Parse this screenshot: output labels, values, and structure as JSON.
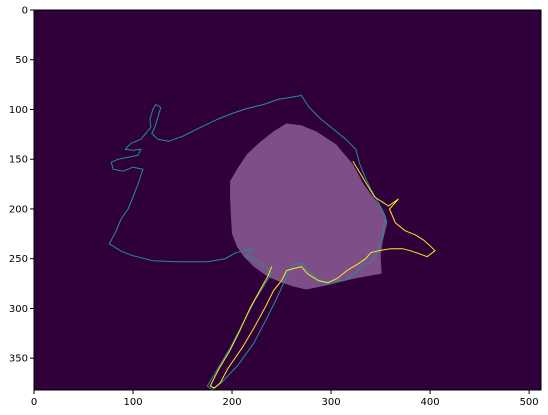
{
  "chart_data": {
    "type": "heatmap",
    "title": "",
    "xlabel": "",
    "ylabel": "",
    "xlim": [
      0,
      512
    ],
    "ylim": [
      382,
      0
    ],
    "x_ticks": [
      0,
      100,
      200,
      300,
      400,
      500
    ],
    "y_ticks": [
      0,
      50,
      100,
      150,
      200,
      250,
      300,
      350
    ],
    "colors": {
      "background": "#30003b",
      "region_fill": "#7d4e88",
      "outline_teal": "#21918c",
      "outline_yellow": "#fde725"
    },
    "series": [
      {
        "kind": "filled-region",
        "points": [
          [
            255,
            114
          ],
          [
            270,
            116
          ],
          [
            285,
            122
          ],
          [
            305,
            135
          ],
          [
            322,
            155
          ],
          [
            333,
            175
          ],
          [
            340,
            185
          ],
          [
            352,
            200
          ],
          [
            357,
            213
          ],
          [
            352,
            233
          ],
          [
            350,
            247
          ],
          [
            351,
            265
          ],
          [
            323,
            270
          ],
          [
            303,
            275
          ],
          [
            290,
            278
          ],
          [
            275,
            281
          ],
          [
            262,
            278
          ],
          [
            250,
            274
          ],
          [
            236,
            268
          ],
          [
            222,
            258
          ],
          [
            212,
            248
          ],
          [
            205,
            238
          ],
          [
            200,
            225
          ],
          [
            199,
            210
          ],
          [
            198,
            190
          ],
          [
            198,
            172
          ],
          [
            205,
            160
          ],
          [
            215,
            145
          ],
          [
            228,
            133
          ],
          [
            242,
            122
          ]
        ]
      },
      {
        "kind": "outline",
        "color": "teal",
        "points": [
          [
            240,
            264
          ],
          [
            226,
            252
          ],
          [
            214,
            248
          ],
          [
            220,
            240
          ],
          [
            204,
            244
          ],
          [
            193,
            250
          ],
          [
            175,
            253
          ],
          [
            145,
            253
          ],
          [
            120,
            252
          ],
          [
            100,
            247
          ],
          [
            89,
            243
          ],
          [
            76,
            235
          ],
          [
            83,
            222
          ],
          [
            88,
            210
          ],
          [
            95,
            200
          ],
          [
            100,
            188
          ],
          [
            105,
            175
          ],
          [
            110,
            160
          ],
          [
            100,
            158
          ],
          [
            90,
            162
          ],
          [
            80,
            160
          ],
          [
            78,
            153
          ],
          [
            85,
            150
          ],
          [
            95,
            148
          ],
          [
            105,
            146
          ],
          [
            108,
            140
          ],
          [
            100,
            141
          ],
          [
            92,
            140
          ],
          [
            98,
            134
          ],
          [
            108,
            130
          ],
          [
            112,
            125
          ],
          [
            118,
            118
          ],
          [
            117,
            110
          ],
          [
            120,
            100
          ],
          [
            123,
            95
          ],
          [
            128,
            98
          ],
          [
            125,
            108
          ],
          [
            122,
            118
          ],
          [
            119,
            124
          ],
          [
            125,
            130
          ],
          [
            136,
            132
          ],
          [
            150,
            127
          ],
          [
            168,
            118
          ],
          [
            185,
            110
          ],
          [
            200,
            104
          ],
          [
            215,
            99
          ],
          [
            232,
            95
          ],
          [
            246,
            90
          ],
          [
            258,
            88
          ],
          [
            270,
            86
          ],
          [
            278,
            98
          ],
          [
            290,
            110
          ],
          [
            300,
            118
          ],
          [
            315,
            130
          ],
          [
            325,
            140
          ],
          [
            329,
            155
          ],
          [
            334,
            167
          ],
          [
            340,
            180
          ],
          [
            348,
            194
          ],
          [
            355,
            208
          ],
          [
            352,
            228
          ],
          [
            345,
            246
          ],
          [
            340,
            254
          ],
          [
            333,
            255
          ],
          [
            327,
            262
          ],
          [
            320,
            268
          ],
          [
            312,
            272
          ],
          [
            303,
            272
          ],
          [
            296,
            276
          ],
          [
            287,
            270
          ],
          [
            276,
            262
          ],
          [
            270,
            255
          ],
          [
            263,
            255
          ],
          [
            258,
            262
          ],
          [
            252,
            275
          ],
          [
            245,
            290
          ],
          [
            235,
            310
          ],
          [
            222,
            335
          ],
          [
            206,
            357
          ],
          [
            190,
            374
          ],
          [
            180,
            382
          ],
          [
            175,
            378
          ],
          [
            186,
            360
          ],
          [
            199,
            338
          ],
          [
            211,
            315
          ],
          [
            223,
            292
          ],
          [
            236,
            271
          ],
          [
            240,
            264
          ]
        ]
      },
      {
        "kind": "outline",
        "color": "yellow",
        "points": [
          [
            322,
            152
          ],
          [
            333,
            170
          ],
          [
            344,
            188
          ],
          [
            358,
            197
          ],
          [
            368,
            190
          ],
          [
            359,
            200
          ],
          [
            365,
            214
          ],
          [
            375,
            222
          ],
          [
            385,
            226
          ],
          [
            393,
            231
          ],
          [
            400,
            237
          ],
          [
            405,
            242
          ],
          [
            397,
            248
          ],
          [
            389,
            245
          ],
          [
            380,
            242
          ],
          [
            372,
            240
          ],
          [
            360,
            240
          ],
          [
            348,
            242
          ],
          [
            340,
            244
          ],
          [
            335,
            250
          ],
          [
            326,
            256
          ],
          [
            316,
            262
          ],
          [
            306,
            270
          ],
          [
            297,
            274
          ],
          [
            287,
            272
          ],
          [
            276,
            265
          ],
          [
            270,
            258
          ],
          [
            262,
            260
          ],
          [
            255,
            262
          ],
          [
            250,
            272
          ],
          [
            242,
            282
          ],
          [
            234,
            298
          ],
          [
            222,
            320
          ],
          [
            210,
            340
          ],
          [
            196,
            360
          ],
          [
            188,
            375
          ],
          [
            182,
            380
          ],
          [
            178,
            378
          ],
          [
            186,
            362
          ],
          [
            198,
            342
          ],
          [
            208,
            322
          ],
          [
            218,
            300
          ],
          [
            228,
            282
          ],
          [
            236,
            268
          ],
          [
            240,
            258
          ]
        ]
      }
    ]
  }
}
